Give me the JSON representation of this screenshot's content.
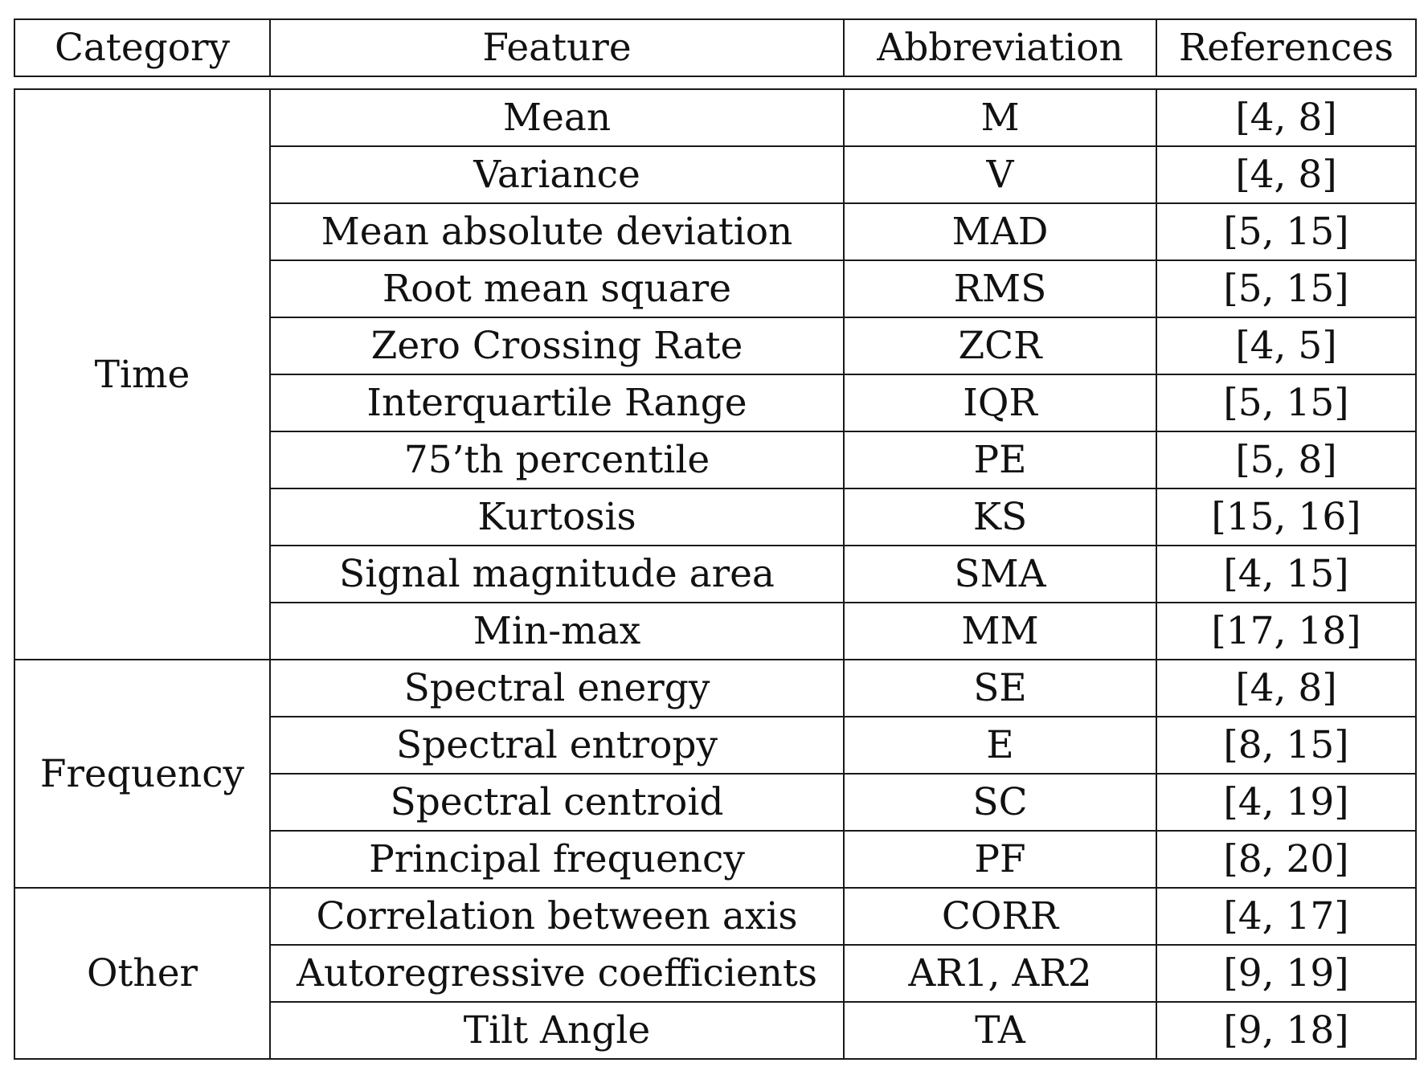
{
  "header": {
    "category": "Category",
    "feature": "Feature",
    "abbreviation": "Abbreviation",
    "references": "References"
  },
  "groups": [
    {
      "category": "Time",
      "rows": [
        {
          "feature": "Mean",
          "abbreviation": "M",
          "references": "[4, 8]"
        },
        {
          "feature": "Variance",
          "abbreviation": "V",
          "references": "[4, 8]"
        },
        {
          "feature": "Mean absolute deviation",
          "abbreviation": "MAD",
          "references": "[5, 15]"
        },
        {
          "feature": "Root mean square",
          "abbreviation": "RMS",
          "references": "[5, 15]"
        },
        {
          "feature": "Zero Crossing Rate",
          "abbreviation": "ZCR",
          "references": "[4, 5]"
        },
        {
          "feature": "Interquartile Range",
          "abbreviation": "IQR",
          "references": "[5, 15]"
        },
        {
          "feature": "75’th percentile",
          "abbreviation": "PE",
          "references": "[5, 8]"
        },
        {
          "feature": "Kurtosis",
          "abbreviation": "KS",
          "references": "[15, 16]"
        },
        {
          "feature": "Signal magnitude area",
          "abbreviation": "SMA",
          "references": "[4, 15]"
        },
        {
          "feature": "Min-max",
          "abbreviation": "MM",
          "references": "[17, 18]"
        }
      ]
    },
    {
      "category": "Frequency",
      "rows": [
        {
          "feature": "Spectral energy",
          "abbreviation": "SE",
          "references": "[4, 8]"
        },
        {
          "feature": "Spectral entropy",
          "abbreviation": "E",
          "references": "[8, 15]"
        },
        {
          "feature": "Spectral centroid",
          "abbreviation": "SC",
          "references": "[4, 19]"
        },
        {
          "feature": "Principal frequency",
          "abbreviation": "PF",
          "references": "[8, 20]"
        }
      ]
    },
    {
      "category": "Other",
      "rows": [
        {
          "feature": "Correlation between axis",
          "abbreviation": "CORR",
          "references": "[4, 17]"
        },
        {
          "feature": "Autoregressive coefficients",
          "abbreviation": "AR1, AR2",
          "references": "[9, 19]"
        },
        {
          "feature": "Tilt Angle",
          "abbreviation": "TA",
          "references": "[9, 18]"
        }
      ]
    }
  ]
}
